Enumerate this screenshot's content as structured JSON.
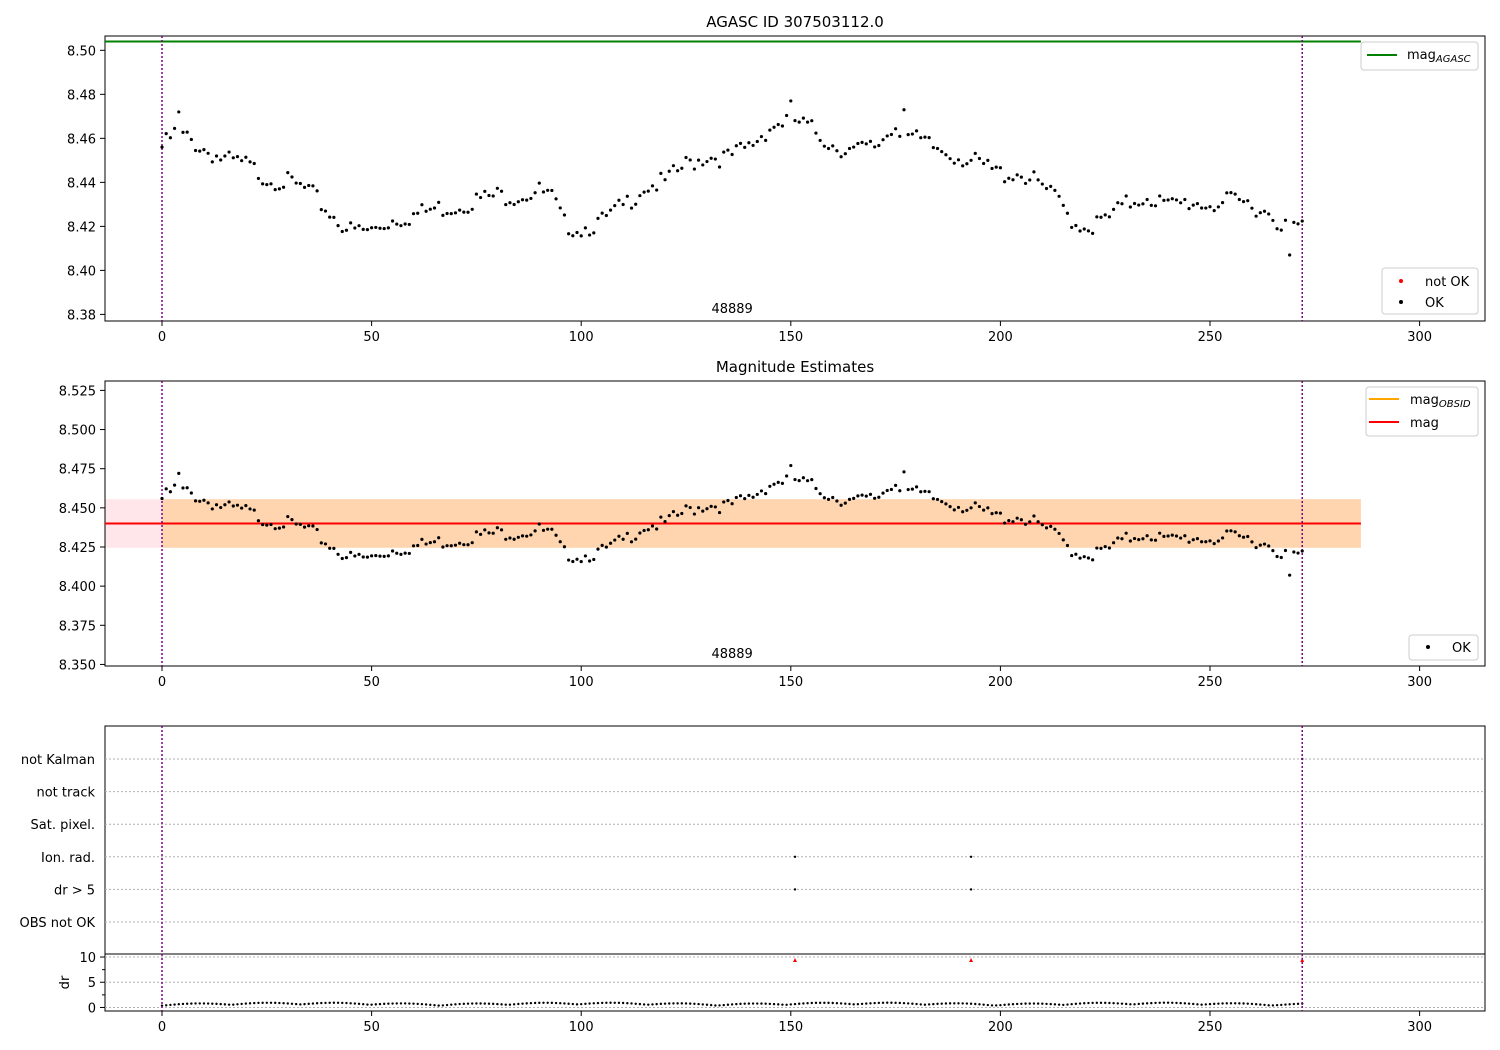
{
  "chart_data": [
    {
      "type": "scatter",
      "title": "AGASC ID 307503112.0",
      "xlim": [
        -13.6,
        315.6
      ],
      "ylim": [
        8.377,
        8.5065
      ],
      "xticks": [
        0,
        50,
        100,
        150,
        200,
        250,
        300
      ],
      "yticks": [
        8.38,
        8.4,
        8.42,
        8.44,
        8.46,
        8.48,
        8.5
      ],
      "hlines": [
        {
          "name": "mag",
          "name_sub": "AGASC",
          "y": 8.504,
          "x_range": [
            -13.6,
            315.6
          ],
          "color": "#008000"
        }
      ],
      "vlines": [
        0,
        272
      ],
      "annotation": {
        "text": "48889",
        "x": 136
      },
      "legend_top": [
        {
          "label": "mag",
          "sub": "AGASC",
          "color": "#008000",
          "kind": "line"
        }
      ],
      "legend_bottom": [
        {
          "label": "not OK",
          "color": "#ff0000",
          "kind": "dot"
        },
        {
          "label": "OK",
          "color": "#000000",
          "kind": "dot"
        }
      ],
      "series": [
        {
          "name": "OK",
          "color": "#000000"
        }
      ]
    },
    {
      "type": "scatter",
      "title": "Magnitude Estimates",
      "xlim": [
        -13.6,
        315.6
      ],
      "ylim": [
        8.349,
        8.531
      ],
      "xticks": [
        0,
        50,
        100,
        150,
        200,
        250,
        300
      ],
      "yticks": [
        8.35,
        8.375,
        8.4,
        8.425,
        8.45,
        8.475,
        8.5,
        8.525
      ],
      "band_outer": {
        "y1": 8.4245,
        "y2": 8.4555,
        "x_range": [
          -13.6,
          286
        ],
        "color": "#ffc0cb"
      },
      "band_inner": {
        "y1": 8.4245,
        "y2": 8.4555,
        "x_range": [
          0,
          286
        ],
        "color": "#ffa500"
      },
      "hlines": [
        {
          "name": "mag",
          "y": 8.44,
          "x_range": [
            -13.6,
            286
          ],
          "color": "#ff0000"
        }
      ],
      "vlines": [
        0,
        272
      ],
      "annotation": {
        "text": "48889",
        "x": 136
      },
      "legend_top": [
        {
          "label": "mag",
          "sub": "OBSID",
          "color": "#ffa500",
          "kind": "line"
        },
        {
          "label": "mag",
          "color": "#ff0000",
          "kind": "line"
        }
      ],
      "legend_bottom": [
        {
          "label": "OK",
          "color": "#000000",
          "kind": "dot"
        }
      ],
      "series": [
        {
          "name": "OK",
          "color": "#000000"
        }
      ]
    },
    {
      "type": "scatter",
      "xlim": [
        -13.6,
        315.6
      ],
      "flags_rows": [
        "not Kalman",
        "not track",
        "Sat. pixel.",
        "Ion. rad.",
        "dr > 5",
        "OBS not OK"
      ],
      "flag_points": [
        {
          "row": "Ion. rad.",
          "x": [
            151,
            193
          ]
        },
        {
          "row": "dr > 5",
          "x": [
            151,
            193
          ]
        },
        {
          "row": "not Kalman",
          "x": [
            272
          ]
        }
      ],
      "dr_ylabel": "dr",
      "dr_ylim": [
        -0.7,
        10.6
      ],
      "dr_yticks": [
        0,
        5,
        10
      ],
      "dr_outliers": [
        {
          "x": 151,
          "y": 10
        },
        {
          "x": 193,
          "y": 10
        },
        {
          "x": 272,
          "y": 10
        }
      ],
      "xticks": [
        0,
        50,
        100,
        150,
        200,
        250,
        300
      ],
      "vlines": [
        0,
        272
      ]
    }
  ],
  "colors": {
    "ok": "#000000",
    "not_ok": "#ff0000",
    "vline": "#800080"
  }
}
